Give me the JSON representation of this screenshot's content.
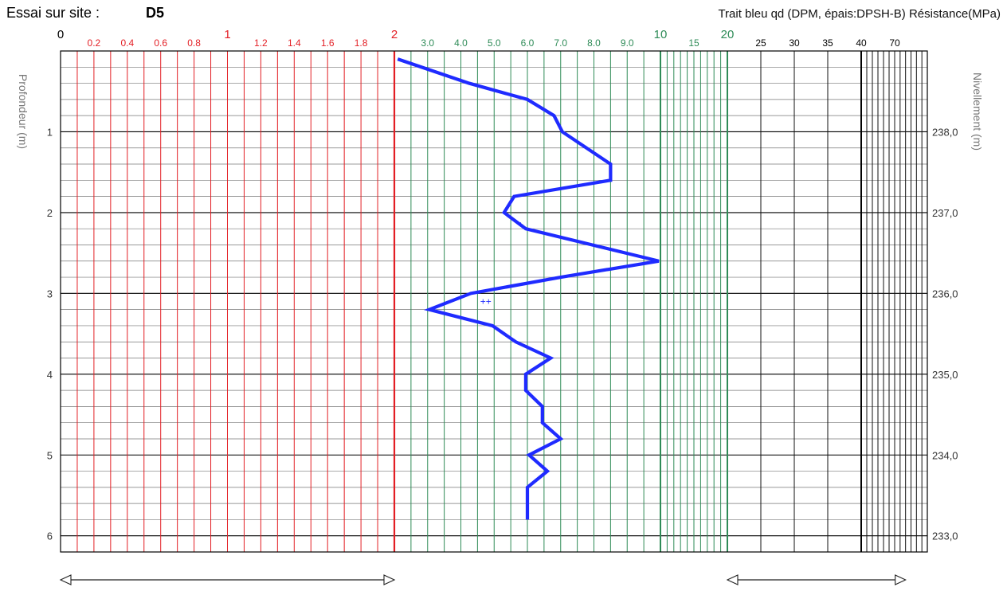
{
  "title": {
    "prefix": "Essai sur site :",
    "site": "D5"
  },
  "legend_text": "Trait bleu qd (DPM, épais:DPSH-B) Résistance(MPa)",
  "colors": {
    "red": "#e31e24",
    "green": "#2e8b57",
    "black": "#000000",
    "line": "#1f2bff"
  },
  "chart_data": {
    "type": "line",
    "title": "Essai sur site : D5",
    "xlabel": "Résistance (MPa)",
    "ylabel": "Profondeur (m)",
    "y2label": "Nivellement (m)",
    "ylim": [
      0,
      6.2
    ],
    "y_inverted": true,
    "x_scale": "piecewise",
    "x_segments": [
      {
        "range": [
          0,
          2
        ],
        "color": "red"
      },
      {
        "range": [
          2,
          10
        ],
        "color": "green"
      },
      {
        "range": [
          10,
          20
        ],
        "color": "green"
      },
      {
        "range": [
          20,
          100
        ],
        "color": "black"
      }
    ],
    "x_ticks": [
      {
        "label": "0",
        "value": 0,
        "color": "black",
        "major": true
      },
      {
        "label": "0.2",
        "value": 0.2,
        "color": "red"
      },
      {
        "label": "0.4",
        "value": 0.4,
        "color": "red"
      },
      {
        "label": "0.6",
        "value": 0.6,
        "color": "red"
      },
      {
        "label": "0.8",
        "value": 0.8,
        "color": "red"
      },
      {
        "label": "1",
        "value": 1.0,
        "color": "red",
        "major": true
      },
      {
        "label": "1.2",
        "value": 1.2,
        "color": "red"
      },
      {
        "label": "1.4",
        "value": 1.4,
        "color": "red"
      },
      {
        "label": "1.6",
        "value": 1.6,
        "color": "red"
      },
      {
        "label": "1.8",
        "value": 1.8,
        "color": "red"
      },
      {
        "label": "2",
        "value": 2.0,
        "color": "red",
        "major": true
      },
      {
        "label": "3.0",
        "value": 3.0,
        "color": "green"
      },
      {
        "label": "4.0",
        "value": 4.0,
        "color": "green"
      },
      {
        "label": "5.0",
        "value": 5.0,
        "color": "green"
      },
      {
        "label": "6.0",
        "value": 6.0,
        "color": "green"
      },
      {
        "label": "7.0",
        "value": 7.0,
        "color": "green"
      },
      {
        "label": "8.0",
        "value": 8.0,
        "color": "green"
      },
      {
        "label": "9.0",
        "value": 9.0,
        "color": "green"
      },
      {
        "label": "10",
        "value": 10,
        "color": "green",
        "major": true
      },
      {
        "label": "15",
        "value": 15,
        "color": "green"
      },
      {
        "label": "20",
        "value": 20,
        "color": "green",
        "major": true
      },
      {
        "label": "25",
        "value": 25,
        "color": "black"
      },
      {
        "label": "30",
        "value": 30,
        "color": "black"
      },
      {
        "label": "35",
        "value": 35,
        "color": "black"
      },
      {
        "label": "40",
        "value": 40,
        "color": "black"
      },
      {
        "label": "70",
        "value": 70,
        "color": "black"
      }
    ],
    "depth_ticks": [
      {
        "label": "1",
        "value": 1
      },
      {
        "label": "2",
        "value": 2
      },
      {
        "label": "3",
        "value": 3
      },
      {
        "label": "4",
        "value": 4
      },
      {
        "label": "5",
        "value": 5
      },
      {
        "label": "6",
        "value": 6
      }
    ],
    "level_ticks": [
      {
        "label": "238,0",
        "value": 1
      },
      {
        "label": "237,0",
        "value": 2
      },
      {
        "label": "236,0",
        "value": 3
      },
      {
        "label": "235,0",
        "value": 4
      },
      {
        "label": "234,0",
        "value": 5
      },
      {
        "label": "233,0",
        "value": 6
      }
    ],
    "series": [
      {
        "points": [
          {
            "depth": 0.1,
            "qd": 2.1
          },
          {
            "depth": 0.4,
            "qd": 4.25
          },
          {
            "depth": 0.6,
            "qd": 6.0
          },
          {
            "depth": 0.8,
            "qd": 6.8
          },
          {
            "depth": 1.0,
            "qd": 7.05
          },
          {
            "depth": 1.4,
            "qd": 8.5
          },
          {
            "depth": 1.6,
            "qd": 8.5
          },
          {
            "depth": 1.8,
            "qd": 5.6
          },
          {
            "depth": 2.0,
            "qd": 5.3
          },
          {
            "depth": 2.2,
            "qd": 5.95
          },
          {
            "depth": 2.6,
            "qd": 9.95
          },
          {
            "depth": 2.8,
            "qd": 7.0
          },
          {
            "depth": 3.0,
            "qd": 4.3
          },
          {
            "depth": 3.2,
            "qd": 3.05
          },
          {
            "depth": 3.4,
            "qd": 4.95
          },
          {
            "depth": 3.6,
            "qd": 5.65
          },
          {
            "depth": 3.8,
            "qd": 6.7
          },
          {
            "depth": 4.0,
            "qd": 5.95
          },
          {
            "depth": 4.2,
            "qd": 5.95
          },
          {
            "depth": 4.4,
            "qd": 6.45
          },
          {
            "depth": 4.6,
            "qd": 6.45
          },
          {
            "depth": 4.8,
            "qd": 7.0
          },
          {
            "depth": 5.0,
            "qd": 6.05
          },
          {
            "depth": 5.2,
            "qd": 6.6
          },
          {
            "depth": 5.4,
            "qd": 6.0
          },
          {
            "depth": 5.6,
            "qd": 6.0
          },
          {
            "depth": 5.8,
            "qd": 6.0
          }
        ]
      }
    ],
    "annotations": [
      {
        "text": "+",
        "depth": 2.15,
        "qd": 5.8
      },
      {
        "text": "++",
        "depth": 3.1,
        "qd": 4.75
      }
    ],
    "arrows": [
      {
        "from": 0,
        "to": 2.0
      },
      {
        "from": 20,
        "to": 80
      }
    ],
    "grid": true
  }
}
